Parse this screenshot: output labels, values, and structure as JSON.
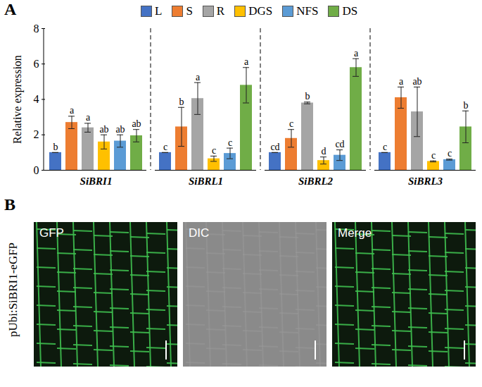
{
  "chart_data": {
    "type": "bar",
    "panel": "A",
    "ylabel": "Relative expression",
    "categories": [
      "SiBRI1",
      "SiBRL1",
      "SiBRL2",
      "SiBRL3"
    ],
    "series": [
      {
        "name": "L",
        "color": "#4472c4",
        "values": [
          1.0,
          1.0,
          1.0,
          1.0
        ],
        "errors": [
          0,
          0,
          0,
          0
        ],
        "letters": [
          "b",
          "c",
          "cd",
          "c"
        ]
      },
      {
        "name": "S",
        "color": "#ed7d31",
        "values": [
          2.7,
          2.45,
          1.8,
          4.1
        ],
        "errors": [
          0.35,
          1.1,
          0.5,
          0.6
        ],
        "letters": [
          "a",
          "b",
          "c",
          "a"
        ]
      },
      {
        "name": "R",
        "color": "#a5a5a5",
        "values": [
          2.4,
          4.05,
          3.8,
          3.3
        ],
        "errors": [
          0.25,
          0.9,
          0.05,
          1.4
        ],
        "letters": [
          "a",
          "a",
          "b",
          "ab"
        ]
      },
      {
        "name": "DGS",
        "color": "#ffc000",
        "values": [
          1.6,
          0.65,
          0.55,
          0.5
        ],
        "errors": [
          0.4,
          0.15,
          0.2,
          0.03
        ],
        "letters": [
          "ab",
          "c",
          "d",
          "c"
        ]
      },
      {
        "name": "NFS",
        "color": "#5b9bd5",
        "values": [
          1.65,
          0.95,
          0.85,
          0.6
        ],
        "errors": [
          0.35,
          0.3,
          0.3,
          0.03
        ],
        "letters": [
          "ab",
          "c",
          "cd",
          "c"
        ]
      },
      {
        "name": "DS",
        "color": "#70ad47",
        "values": [
          1.95,
          4.8,
          5.8,
          2.45
        ],
        "errors": [
          0.35,
          1.0,
          0.5,
          0.9
        ],
        "letters": [
          "ab",
          "a",
          "a",
          "b"
        ]
      }
    ],
    "ylim": [
      0,
      8
    ],
    "yticks": [
      0,
      2,
      4,
      6,
      8
    ],
    "grid": false,
    "legend": "top"
  },
  "image_panel": {
    "panel": "B",
    "row_label": "pUbi:SiBRI1-eGFP",
    "images": [
      "GFP",
      "DIC",
      "Merge"
    ]
  }
}
